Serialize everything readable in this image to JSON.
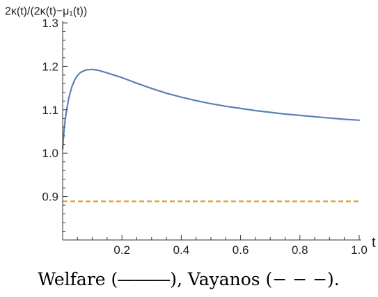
{
  "chart_data": {
    "type": "line",
    "ylabel": "2κ(t)/(2κ(t)−μ₁(t))",
    "xlabel": "t",
    "caption": "Welfare (―――), Vayanos (− − −).",
    "xlim": [
      0,
      1.0
    ],
    "ylim": [
      0.8,
      1.3
    ],
    "x_ticks": [
      0.2,
      0.4,
      0.6,
      0.8,
      1.0
    ],
    "x_tick_labels": [
      "0.2",
      "0.4",
      "0.6",
      "0.8",
      "1.0"
    ],
    "y_ticks": [
      0.9,
      1.0,
      1.1,
      1.2,
      1.3
    ],
    "y_tick_labels": [
      "0.9",
      "1.0",
      "1.1",
      "1.2",
      "1.3"
    ],
    "grid": false,
    "series": [
      {
        "name": "Welfare",
        "style": "solid",
        "color": "#5a80b8",
        "x": [
          0.0,
          0.005,
          0.01,
          0.02,
          0.03,
          0.04,
          0.05,
          0.06,
          0.08,
          0.1,
          0.12,
          0.15,
          0.2,
          0.25,
          0.3,
          0.35,
          0.4,
          0.45,
          0.5,
          0.55,
          0.6,
          0.65,
          0.7,
          0.75,
          0.8,
          0.85,
          0.9,
          0.95,
          1.0
        ],
        "y": [
          1.01,
          1.055,
          1.085,
          1.125,
          1.151,
          1.168,
          1.179,
          1.186,
          1.192,
          1.193,
          1.191,
          1.185,
          1.174,
          1.161,
          1.149,
          1.138,
          1.129,
          1.121,
          1.114,
          1.108,
          1.103,
          1.098,
          1.094,
          1.09,
          1.087,
          1.084,
          1.081,
          1.078,
          1.076
        ]
      },
      {
        "name": "Vayanos",
        "style": "dashed",
        "color": "#e19c24",
        "x": [
          0.0,
          1.0
        ],
        "y": [
          0.889,
          0.889
        ]
      }
    ]
  }
}
